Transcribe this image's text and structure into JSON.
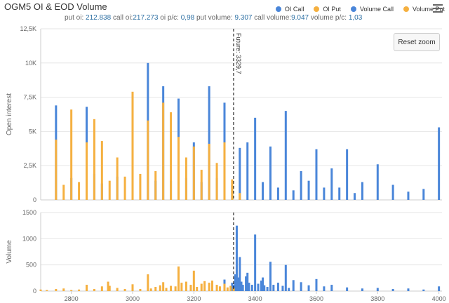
{
  "title": "OGM5 OI & EOD Volume",
  "subtitle": {
    "put_oi_label": "put oi:",
    "put_oi": "212.838",
    "call_oi_label": "call oi:",
    "call_oi": "217.273",
    "oi_pc_label": "oi p/c:",
    "oi_pc": "0,98",
    "put_volume_label": "put volume:",
    "put_volume": "9.307",
    "call_volume_label": "call volume:",
    "call_volume": "9.047",
    "volume_pc_label": "volume p/c:",
    "volume_pc": "1,03"
  },
  "legend": [
    {
      "label": "OI Call",
      "color": "#4a86d9"
    },
    {
      "label": "OI Put",
      "color": "#f5b040"
    },
    {
      "label": "Volume Call",
      "color": "#4a86d9"
    },
    {
      "label": "Volume Put",
      "color": "#f5b040"
    }
  ],
  "reset_zoom_label": "Reset zoom",
  "menu_icon": "hamburger-menu-icon",
  "chart_data": [
    {
      "type": "bar",
      "ylabel": "Open interest",
      "ylim": [
        0,
        12500
      ],
      "yticks": [
        {
          "value": 0,
          "label": "0"
        },
        {
          "value": 2500,
          "label": "2,5K"
        },
        {
          "value": 5000,
          "label": "5K"
        },
        {
          "value": 7500,
          "label": "7,5K"
        },
        {
          "value": 10000,
          "label": "10K"
        },
        {
          "value": 12500,
          "label": "12,5K"
        }
      ],
      "xlim": [
        2700,
        4010
      ],
      "future": {
        "x": 3329.7,
        "label": "Future: 3329,7"
      },
      "series": [
        {
          "name": "OI Call",
          "color": "#4a86d9",
          "points": [
            [
              2750,
              6900
            ],
            [
              2800,
              1600
            ],
            [
              2850,
              6800
            ],
            [
              2875,
              1900
            ],
            [
              2900,
              1200
            ],
            [
              2950,
              1700
            ],
            [
              3000,
              7700
            ],
            [
              3050,
              10000
            ],
            [
              3075,
              1400
            ],
            [
              3100,
              8300
            ],
            [
              3125,
              1400
            ],
            [
              3150,
              7400
            ],
            [
              3175,
              1600
            ],
            [
              3200,
              4200
            ],
            [
              3225,
              1300
            ],
            [
              3250,
              8300
            ],
            [
              3275,
              1600
            ],
            [
              3300,
              7100
            ],
            [
              3325,
              1100
            ],
            [
              3350,
              3800
            ],
            [
              3375,
              4200
            ],
            [
              3400,
              6000
            ],
            [
              3425,
              1300
            ],
            [
              3450,
              3900
            ],
            [
              3475,
              900
            ],
            [
              3500,
              6500
            ],
            [
              3525,
              700
            ],
            [
              3550,
              2100
            ],
            [
              3575,
              1400
            ],
            [
              3600,
              3700
            ],
            [
              3625,
              900
            ],
            [
              3650,
              2300
            ],
            [
              3675,
              900
            ],
            [
              3700,
              3700
            ],
            [
              3725,
              500
            ],
            [
              3750,
              1300
            ],
            [
              3800,
              2600
            ],
            [
              3850,
              1100
            ],
            [
              3900,
              600
            ],
            [
              3950,
              800
            ],
            [
              4000,
              5300
            ]
          ]
        },
        {
          "name": "OI Put",
          "color": "#f5b040",
          "points": [
            [
              2750,
              4400
            ],
            [
              2775,
              1100
            ],
            [
              2800,
              6600
            ],
            [
              2825,
              1300
            ],
            [
              2850,
              4200
            ],
            [
              2875,
              5900
            ],
            [
              2900,
              4300
            ],
            [
              2925,
              1400
            ],
            [
              2950,
              3100
            ],
            [
              2975,
              1700
            ],
            [
              3000,
              7900
            ],
            [
              3025,
              1900
            ],
            [
              3050,
              5800
            ],
            [
              3075,
              2100
            ],
            [
              3100,
              7100
            ],
            [
              3125,
              6400
            ],
            [
              3150,
              4600
            ],
            [
              3175,
              3100
            ],
            [
              3200,
              3900
            ],
            [
              3225,
              2200
            ],
            [
              3250,
              4100
            ],
            [
              3275,
              2700
            ],
            [
              3300,
              4200
            ],
            [
              3325,
              1500
            ],
            [
              3350,
              500
            ]
          ]
        }
      ]
    },
    {
      "type": "bar",
      "ylabel": "Volume",
      "ylim": [
        0,
        1500
      ],
      "yticks": [
        {
          "value": 0,
          "label": "0"
        },
        {
          "value": 500,
          "label": "500"
        },
        {
          "value": 1000,
          "label": "1000"
        },
        {
          "value": 1500,
          "label": "1500"
        }
      ],
      "xlim": [
        2700,
        4010
      ],
      "xticks": [
        {
          "value": 2800,
          "label": "2800"
        },
        {
          "value": 3000,
          "label": "3000"
        },
        {
          "value": 3200,
          "label": "3200"
        },
        {
          "value": 3400,
          "label": "3400"
        },
        {
          "value": 3600,
          "label": "3600"
        },
        {
          "value": 3800,
          "label": "3800"
        },
        {
          "value": 4000,
          "label": "4000"
        }
      ],
      "future": {
        "x": 3329.7
      },
      "series": [
        {
          "name": "Volume Call",
          "color": "#4a86d9",
          "points": [
            [
              3300,
              220
            ],
            [
              3325,
              160
            ],
            [
              3330,
              120
            ],
            [
              3335,
              320
            ],
            [
              3340,
              1250
            ],
            [
              3345,
              260
            ],
            [
              3350,
              650
            ],
            [
              3355,
              180
            ],
            [
              3360,
              120
            ],
            [
              3370,
              280
            ],
            [
              3375,
              350
            ],
            [
              3380,
              160
            ],
            [
              3390,
              120
            ],
            [
              3400,
              1080
            ],
            [
              3410,
              140
            ],
            [
              3420,
              200
            ],
            [
              3425,
              260
            ],
            [
              3430,
              110
            ],
            [
              3440,
              80
            ],
            [
              3450,
              560
            ],
            [
              3460,
              120
            ],
            [
              3475,
              160
            ],
            [
              3490,
              100
            ],
            [
              3500,
              500
            ],
            [
              3510,
              60
            ],
            [
              3525,
              210
            ],
            [
              3550,
              170
            ],
            [
              3575,
              110
            ],
            [
              3600,
              230
            ],
            [
              3625,
              90
            ],
            [
              3650,
              120
            ],
            [
              3700,
              70
            ],
            [
              3750,
              50
            ],
            [
              3800,
              60
            ],
            [
              3850,
              40
            ],
            [
              3900,
              50
            ],
            [
              3950,
              30
            ],
            [
              4000,
              90
            ]
          ]
        },
        {
          "name": "Volume Put",
          "color": "#f5b040",
          "points": [
            [
              2700,
              30
            ],
            [
              2720,
              20
            ],
            [
              2750,
              40
            ],
            [
              2775,
              50
            ],
            [
              2800,
              20
            ],
            [
              2825,
              30
            ],
            [
              2850,
              120
            ],
            [
              2875,
              40
            ],
            [
              2900,
              90
            ],
            [
              2920,
              180
            ],
            [
              2925,
              100
            ],
            [
              2950,
              60
            ],
            [
              2975,
              40
            ],
            [
              3000,
              130
            ],
            [
              3025,
              40
            ],
            [
              3050,
              320
            ],
            [
              3060,
              50
            ],
            [
              3075,
              80
            ],
            [
              3090,
              110
            ],
            [
              3100,
              170
            ],
            [
              3110,
              60
            ],
            [
              3125,
              100
            ],
            [
              3140,
              90
            ],
            [
              3150,
              470
            ],
            [
              3160,
              160
            ],
            [
              3175,
              180
            ],
            [
              3190,
              120
            ],
            [
              3200,
              390
            ],
            [
              3210,
              80
            ],
            [
              3225,
              140
            ],
            [
              3235,
              190
            ],
            [
              3250,
              160
            ],
            [
              3260,
              200
            ],
            [
              3275,
              120
            ],
            [
              3285,
              90
            ],
            [
              3300,
              140
            ],
            [
              3310,
              70
            ],
            [
              3320,
              100
            ],
            [
              3330,
              60
            ]
          ]
        }
      ]
    }
  ]
}
